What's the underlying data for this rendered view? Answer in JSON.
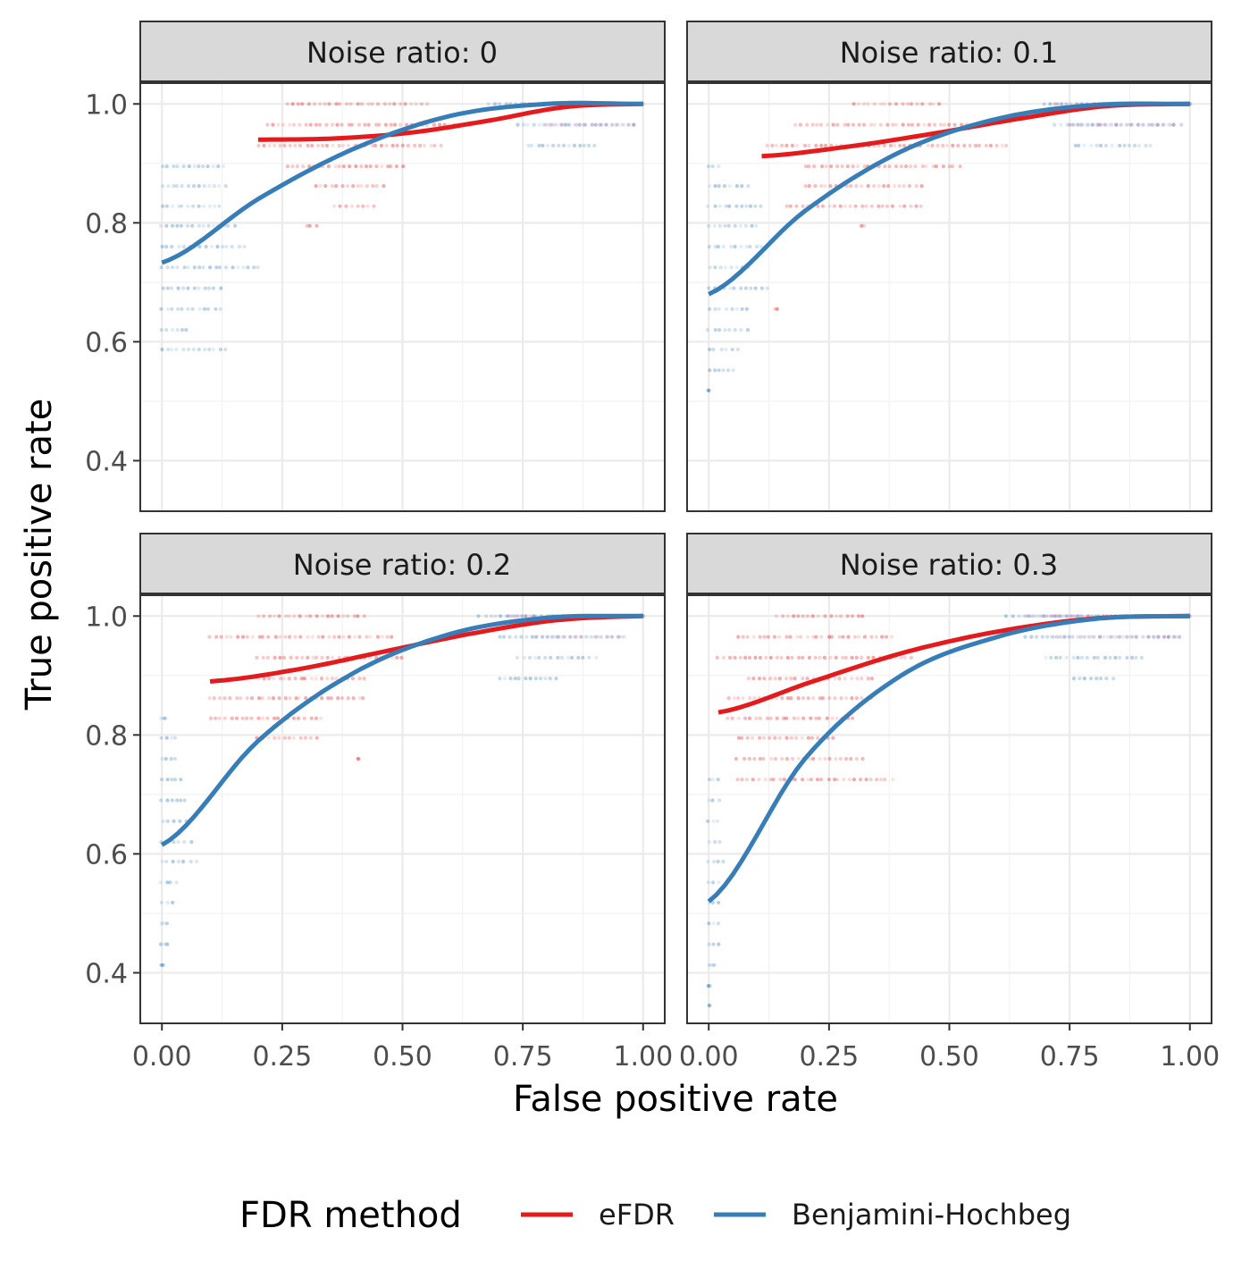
{
  "chart_data": {
    "type": "scatter",
    "xlabel": "False positive rate",
    "ylabel": "True positive rate",
    "xlim": [
      -0.045,
      1.045
    ],
    "ylim": [
      0.315,
      1.035
    ],
    "x_ticks": [
      0,
      0.25,
      0.5,
      0.75,
      1
    ],
    "x_tick_labels": [
      "0.00",
      "0.25",
      "0.50",
      "0.75",
      "1.00"
    ],
    "y_ticks": [
      0.4,
      0.6,
      0.8,
      1.0
    ],
    "y_tick_labels": [
      "0.4",
      "0.6",
      "0.8",
      "1.0"
    ],
    "grid": true,
    "legend": {
      "title": "FDR method",
      "position": "bottom",
      "entries": [
        {
          "label": "eFDR",
          "color": "#E41A1C"
        },
        {
          "label": "Benjamini-Hochbeg",
          "color": "#377EB8"
        }
      ]
    },
    "panels": [
      {
        "strip": "Noise ratio: 0",
        "series": [
          {
            "key": "efdr",
            "color": "#E41A1C",
            "smooth": {
              "x0": 0.2,
              "x1": 1.0,
              "y": [
                0.94,
                0.942,
                0.952,
                0.972,
                0.995,
                1.0
              ]
            },
            "clusters": [
              {
                "y": 1.0,
                "x_min": 0.26,
                "x_max": 0.55
              },
              {
                "y": 0.965,
                "x_min": 0.22,
                "x_max": 0.62
              },
              {
                "y": 0.93,
                "x_min": 0.2,
                "x_max": 0.58
              },
              {
                "y": 0.895,
                "x_min": 0.26,
                "x_max": 0.5
              },
              {
                "y": 0.862,
                "x_min": 0.32,
                "x_max": 0.46
              },
              {
                "y": 0.828,
                "x_min": 0.36,
                "x_max": 0.44
              },
              {
                "y": 0.795,
                "x_min": 0.3,
                "x_max": 0.32
              }
            ]
          },
          {
            "key": "bh",
            "color": "#377EB8",
            "smooth": {
              "x0": 0.0,
              "x1": 1.0,
              "y": [
                0.733,
                0.84,
                0.925,
                0.98,
                1.0,
                1.0
              ]
            },
            "clusters": [
              {
                "y": 1.0,
                "x_min": 0.68,
                "x_max": 1.0
              },
              {
                "y": 0.965,
                "x_min": 0.74,
                "x_max": 0.98
              },
              {
                "y": 0.93,
                "x_min": 0.76,
                "x_max": 0.9
              },
              {
                "y": 0.895,
                "x_min": 0.0,
                "x_max": 0.13
              },
              {
                "y": 0.862,
                "x_min": 0.0,
                "x_max": 0.13
              },
              {
                "y": 0.828,
                "x_min": 0.0,
                "x_max": 0.12
              },
              {
                "y": 0.795,
                "x_min": 0.0,
                "x_max": 0.15
              },
              {
                "y": 0.76,
                "x_min": 0.0,
                "x_max": 0.17
              },
              {
                "y": 0.725,
                "x_min": 0.0,
                "x_max": 0.2
              },
              {
                "y": 0.69,
                "x_min": 0.0,
                "x_max": 0.12
              },
              {
                "y": 0.655,
                "x_min": 0.0,
                "x_max": 0.12
              },
              {
                "y": 0.62,
                "x_min": 0.0,
                "x_max": 0.05
              },
              {
                "y": 0.587,
                "x_min": 0.0,
                "x_max": 0.13
              }
            ]
          },
          {
            "key": "overlap",
            "color": "#B8659C",
            "clusters": [
              {
                "y": 1.0,
                "x_min": 0.75,
                "x_max": 1.0
              },
              {
                "y": 0.965,
                "x_min": 0.8,
                "x_max": 0.98
              }
            ]
          }
        ]
      },
      {
        "strip": "Noise ratio: 0.1",
        "series": [
          {
            "key": "efdr",
            "color": "#E41A1C",
            "smooth": {
              "x0": 0.11,
              "x1": 1.0,
              "y": [
                0.912,
                0.928,
                0.95,
                0.975,
                0.996,
                1.0
              ]
            },
            "clusters": [
              {
                "y": 1.0,
                "x_min": 0.3,
                "x_max": 0.48
              },
              {
                "y": 0.965,
                "x_min": 0.18,
                "x_max": 0.58
              },
              {
                "y": 0.93,
                "x_min": 0.12,
                "x_max": 0.62
              },
              {
                "y": 0.895,
                "x_min": 0.2,
                "x_max": 0.52
              },
              {
                "y": 0.862,
                "x_min": 0.2,
                "x_max": 0.44
              },
              {
                "y": 0.828,
                "x_min": 0.16,
                "x_max": 0.44
              },
              {
                "y": 0.795,
                "x_min": 0.32,
                "x_max": 0.32
              },
              {
                "y": 0.655,
                "x_min": 0.14,
                "x_max": 0.14
              }
            ]
          },
          {
            "key": "bh",
            "color": "#377EB8",
            "smooth": {
              "x0": 0.0,
              "x1": 1.0,
              "y": [
                0.68,
                0.82,
                0.92,
                0.975,
                0.998,
                1.0
              ]
            },
            "clusters": [
              {
                "y": 1.0,
                "x_min": 0.7,
                "x_max": 1.0
              },
              {
                "y": 0.965,
                "x_min": 0.72,
                "x_max": 0.98
              },
              {
                "y": 0.93,
                "x_min": 0.76,
                "x_max": 0.92
              },
              {
                "y": 0.895,
                "x_min": 0.0,
                "x_max": 0.02
              },
              {
                "y": 0.862,
                "x_min": 0.0,
                "x_max": 0.08
              },
              {
                "y": 0.828,
                "x_min": 0.0,
                "x_max": 0.11
              },
              {
                "y": 0.795,
                "x_min": 0.0,
                "x_max": 0.1
              },
              {
                "y": 0.76,
                "x_min": 0.0,
                "x_max": 0.11
              },
              {
                "y": 0.725,
                "x_min": 0.0,
                "x_max": 0.08
              },
              {
                "y": 0.69,
                "x_min": 0.0,
                "x_max": 0.12
              },
              {
                "y": 0.655,
                "x_min": 0.0,
                "x_max": 0.08
              },
              {
                "y": 0.62,
                "x_min": 0.0,
                "x_max": 0.08
              },
              {
                "y": 0.587,
                "x_min": 0.0,
                "x_max": 0.06
              },
              {
                "y": 0.552,
                "x_min": 0.0,
                "x_max": 0.05
              },
              {
                "y": 0.518,
                "x_min": 0.0,
                "x_max": 0.0
              }
            ]
          },
          {
            "key": "overlap",
            "color": "#B8659C",
            "clusters": [
              {
                "y": 1.0,
                "x_min": 0.72,
                "x_max": 1.0
              },
              {
                "y": 0.965,
                "x_min": 0.75,
                "x_max": 0.98
              }
            ]
          }
        ]
      },
      {
        "strip": "Noise ratio: 0.2",
        "series": [
          {
            "key": "efdr",
            "color": "#E41A1C",
            "smooth": {
              "x0": 0.1,
              "x1": 1.0,
              "y": [
                0.89,
                0.91,
                0.94,
                0.97,
                0.993,
                1.0
              ]
            },
            "clusters": [
              {
                "y": 1.0,
                "x_min": 0.2,
                "x_max": 0.42
              },
              {
                "y": 0.965,
                "x_min": 0.1,
                "x_max": 0.48
              },
              {
                "y": 0.93,
                "x_min": 0.2,
                "x_max": 0.5
              },
              {
                "y": 0.895,
                "x_min": 0.2,
                "x_max": 0.42
              },
              {
                "y": 0.862,
                "x_min": 0.1,
                "x_max": 0.42
              },
              {
                "y": 0.828,
                "x_min": 0.1,
                "x_max": 0.33
              },
              {
                "y": 0.795,
                "x_min": 0.2,
                "x_max": 0.32
              },
              {
                "y": 0.76,
                "x_min": 0.41,
                "x_max": 0.41
              }
            ]
          },
          {
            "key": "bh",
            "color": "#377EB8",
            "smooth": {
              "x0": 0.0,
              "x1": 1.0,
              "y": [
                0.615,
                0.79,
                0.905,
                0.97,
                0.997,
                1.0
              ]
            },
            "clusters": [
              {
                "y": 1.0,
                "x_min": 0.66,
                "x_max": 1.0
              },
              {
                "y": 0.965,
                "x_min": 0.7,
                "x_max": 0.96
              },
              {
                "y": 0.93,
                "x_min": 0.74,
                "x_max": 0.9
              },
              {
                "y": 0.895,
                "x_min": 0.7,
                "x_max": 0.82
              },
              {
                "y": 0.828,
                "x_min": 0.0,
                "x_max": 0.01
              },
              {
                "y": 0.795,
                "x_min": 0.0,
                "x_max": 0.03
              },
              {
                "y": 0.76,
                "x_min": 0.0,
                "x_max": 0.03
              },
              {
                "y": 0.725,
                "x_min": 0.0,
                "x_max": 0.04
              },
              {
                "y": 0.69,
                "x_min": 0.0,
                "x_max": 0.05
              },
              {
                "y": 0.655,
                "x_min": 0.0,
                "x_max": 0.06
              },
              {
                "y": 0.62,
                "x_min": 0.0,
                "x_max": 0.06
              },
              {
                "y": 0.587,
                "x_min": 0.0,
                "x_max": 0.07
              },
              {
                "y": 0.552,
                "x_min": 0.0,
                "x_max": 0.03
              },
              {
                "y": 0.518,
                "x_min": 0.0,
                "x_max": 0.02
              },
              {
                "y": 0.483,
                "x_min": 0.0,
                "x_max": 0.01
              },
              {
                "y": 0.448,
                "x_min": 0.0,
                "x_max": 0.01
              },
              {
                "y": 0.413,
                "x_min": 0.0,
                "x_max": 0.0
              }
            ]
          },
          {
            "key": "overlap",
            "color": "#B8659C",
            "clusters": [
              {
                "y": 1.0,
                "x_min": 0.72,
                "x_max": 1.0
              },
              {
                "y": 0.965,
                "x_min": 0.78,
                "x_max": 0.96
              }
            ]
          }
        ]
      },
      {
        "strip": "Noise ratio: 0.3",
        "series": [
          {
            "key": "efdr",
            "color": "#E41A1C",
            "smooth": {
              "x0": 0.02,
              "x1": 1.0,
              "y": [
                0.838,
                0.89,
                0.94,
                0.975,
                0.996,
                1.0
              ]
            },
            "clusters": [
              {
                "y": 1.0,
                "x_min": 0.14,
                "x_max": 0.32
              },
              {
                "y": 0.965,
                "x_min": 0.06,
                "x_max": 0.38
              },
              {
                "y": 0.93,
                "x_min": 0.02,
                "x_max": 0.42
              },
              {
                "y": 0.895,
                "x_min": 0.08,
                "x_max": 0.34
              },
              {
                "y": 0.862,
                "x_min": 0.04,
                "x_max": 0.34
              },
              {
                "y": 0.828,
                "x_min": 0.04,
                "x_max": 0.3
              },
              {
                "y": 0.795,
                "x_min": 0.06,
                "x_max": 0.26
              },
              {
                "y": 0.76,
                "x_min": 0.06,
                "x_max": 0.32
              },
              {
                "y": 0.725,
                "x_min": 0.06,
                "x_max": 0.38
              }
            ]
          },
          {
            "key": "bh",
            "color": "#377EB8",
            "smooth": {
              "x0": 0.0,
              "x1": 1.0,
              "y": [
                0.52,
                0.76,
                0.9,
                0.965,
                0.995,
                1.0
              ]
            },
            "clusters": [
              {
                "y": 1.0,
                "x_min": 0.62,
                "x_max": 1.0
              },
              {
                "y": 0.965,
                "x_min": 0.66,
                "x_max": 0.98
              },
              {
                "y": 0.93,
                "x_min": 0.7,
                "x_max": 0.9
              },
              {
                "y": 0.895,
                "x_min": 0.76,
                "x_max": 0.84
              },
              {
                "y": 0.725,
                "x_min": 0.0,
                "x_max": 0.02
              },
              {
                "y": 0.69,
                "x_min": 0.0,
                "x_max": 0.02
              },
              {
                "y": 0.655,
                "x_min": 0.0,
                "x_max": 0.02
              },
              {
                "y": 0.62,
                "x_min": 0.0,
                "x_max": 0.02
              },
              {
                "y": 0.587,
                "x_min": 0.0,
                "x_max": 0.03
              },
              {
                "y": 0.552,
                "x_min": 0.0,
                "x_max": 0.02
              },
              {
                "y": 0.518,
                "x_min": 0.0,
                "x_max": 0.02
              },
              {
                "y": 0.483,
                "x_min": 0.0,
                "x_max": 0.02
              },
              {
                "y": 0.448,
                "x_min": 0.0,
                "x_max": 0.02
              },
              {
                "y": 0.413,
                "x_min": 0.0,
                "x_max": 0.01
              },
              {
                "y": 0.378,
                "x_min": 0.0,
                "x_max": 0.0
              },
              {
                "y": 0.345,
                "x_min": 0.0,
                "x_max": 0.0
              }
            ]
          },
          {
            "key": "overlap",
            "color": "#B8659C",
            "clusters": [
              {
                "y": 1.0,
                "x_min": 0.66,
                "x_max": 1.0
              },
              {
                "y": 0.965,
                "x_min": 0.72,
                "x_max": 0.98
              }
            ]
          }
        ]
      }
    ]
  }
}
